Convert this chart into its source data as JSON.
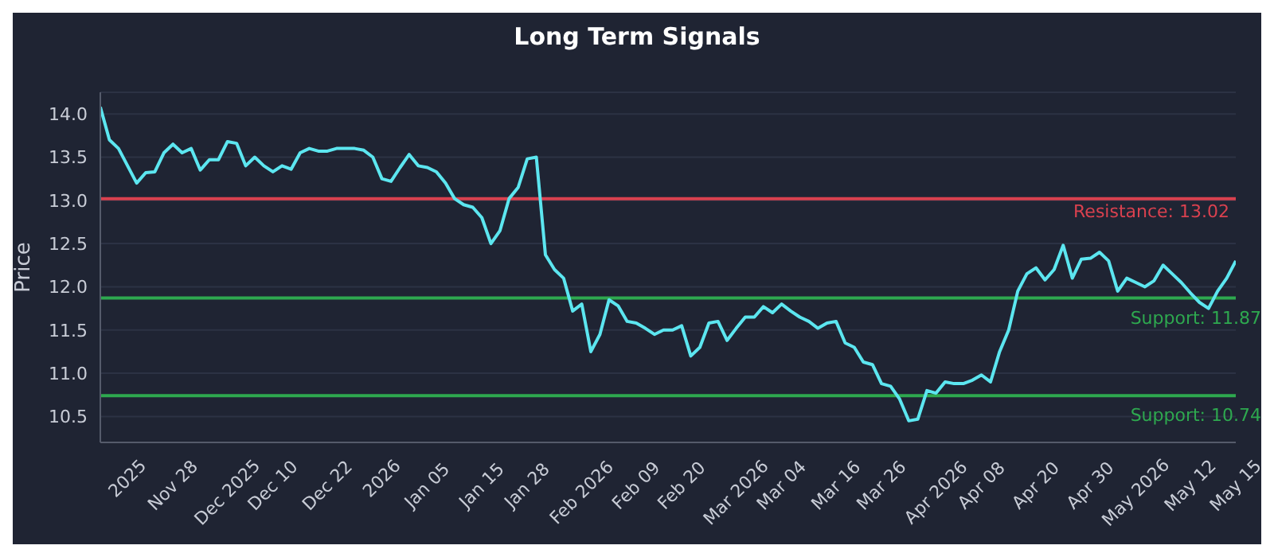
{
  "chart_data": {
    "type": "line",
    "title": "Long Term Signals",
    "ylabel": "Price",
    "categories": [
      null,
      null,
      null,
      "2025",
      null,
      null,
      null,
      null,
      "Nov 28",
      null,
      null,
      null,
      null,
      null,
      "Dec 2025",
      null,
      null,
      null,
      null,
      "Dec 10",
      null,
      null,
      null,
      null,
      null,
      "Dec 22",
      null,
      null,
      null,
      null,
      null,
      "2026",
      null,
      null,
      null,
      null,
      "Jan 05",
      null,
      null,
      null,
      null,
      null,
      "Jan 15",
      null,
      null,
      null,
      null,
      "Jan 28",
      null,
      null,
      null,
      null,
      null,
      "Feb 2026",
      null,
      null,
      null,
      null,
      null,
      "Feb 09",
      null,
      null,
      null,
      null,
      "Feb 20",
      null,
      null,
      null,
      null,
      null,
      "Mar 2026",
      null,
      null,
      null,
      null,
      "Mar 04",
      null,
      null,
      null,
      null,
      null,
      "Mar 16",
      null,
      null,
      null,
      null,
      "Mar 26",
      null,
      null,
      null,
      null,
      null,
      "Apr 2026",
      null,
      null,
      null,
      null,
      "Apr 08",
      null,
      null,
      null,
      null,
      null,
      "Apr 20",
      null,
      null,
      null,
      null,
      null,
      "Apr 30",
      null,
      null,
      null,
      null,
      "May 2026",
      null,
      null,
      null,
      null,
      null,
      "May 12",
      null,
      null,
      null,
      null,
      "May 15"
    ],
    "series": [
      {
        "color": "#5ce6f0",
        "values": [
          14.08,
          13.7,
          13.6,
          13.4,
          13.2,
          13.32,
          13.33,
          13.55,
          13.65,
          13.55,
          13.6,
          13.35,
          13.47,
          13.47,
          13.68,
          13.66,
          13.4,
          13.5,
          13.4,
          13.33,
          13.4,
          13.36,
          13.55,
          13.6,
          13.57,
          13.57,
          13.6,
          13.6,
          13.6,
          13.58,
          13.5,
          13.25,
          13.22,
          13.38,
          13.53,
          13.4,
          13.38,
          13.33,
          13.2,
          13.02,
          12.95,
          12.92,
          12.8,
          12.5,
          12.65,
          13.02,
          13.15,
          13.48,
          13.5,
          12.37,
          12.2,
          12.1,
          11.72,
          11.8,
          11.25,
          11.45,
          11.85,
          11.78,
          11.6,
          11.58,
          11.52,
          11.45,
          11.5,
          11.5,
          11.55,
          11.2,
          11.3,
          11.58,
          11.6,
          11.38,
          11.52,
          11.65,
          11.65,
          11.77,
          11.7,
          11.8,
          11.72,
          11.65,
          11.6,
          11.52,
          11.58,
          11.6,
          11.35,
          11.3,
          11.13,
          11.1,
          10.88,
          10.85,
          10.7,
          10.45,
          10.47,
          10.8,
          10.77,
          10.9,
          10.88,
          10.88,
          10.92,
          10.98,
          10.9,
          11.25,
          11.5,
          11.95,
          12.15,
          12.22,
          12.08,
          12.2,
          12.48,
          12.1,
          12.32,
          12.33,
          12.4,
          12.3,
          11.95,
          12.1,
          12.05,
          12.0,
          12.07,
          12.25,
          12.15,
          12.05,
          11.93,
          11.82,
          11.75,
          11.95,
          12.1,
          12.3
        ]
      }
    ],
    "ylim": [
      10.2,
      14.25
    ],
    "yticks": [
      {
        "value": 10.5,
        "label": "10.5"
      },
      {
        "value": 11,
        "label": "11.0"
      },
      {
        "value": 11.5,
        "label": "11.5"
      },
      {
        "value": 12,
        "label": "12.0"
      },
      {
        "value": 12.5,
        "label": "12.5"
      },
      {
        "value": 13,
        "label": "13.0"
      },
      {
        "value": 13.5,
        "label": "13.5"
      },
      {
        "value": 14,
        "label": "14.0"
      }
    ],
    "grid": "y",
    "legend": false,
    "marker": "none",
    "line_style": "solid",
    "ref_lines": [
      {
        "axis": "y",
        "value": 13.02,
        "label": "Resistance: 13.02",
        "color": "#d9414f"
      },
      {
        "axis": "y",
        "value": 11.87,
        "label": "Support: 11.87",
        "color": "#2ea84f"
      },
      {
        "axis": "y",
        "value": 10.74,
        "label": "Support: 10.74",
        "color": "#2ea84f"
      }
    ]
  }
}
